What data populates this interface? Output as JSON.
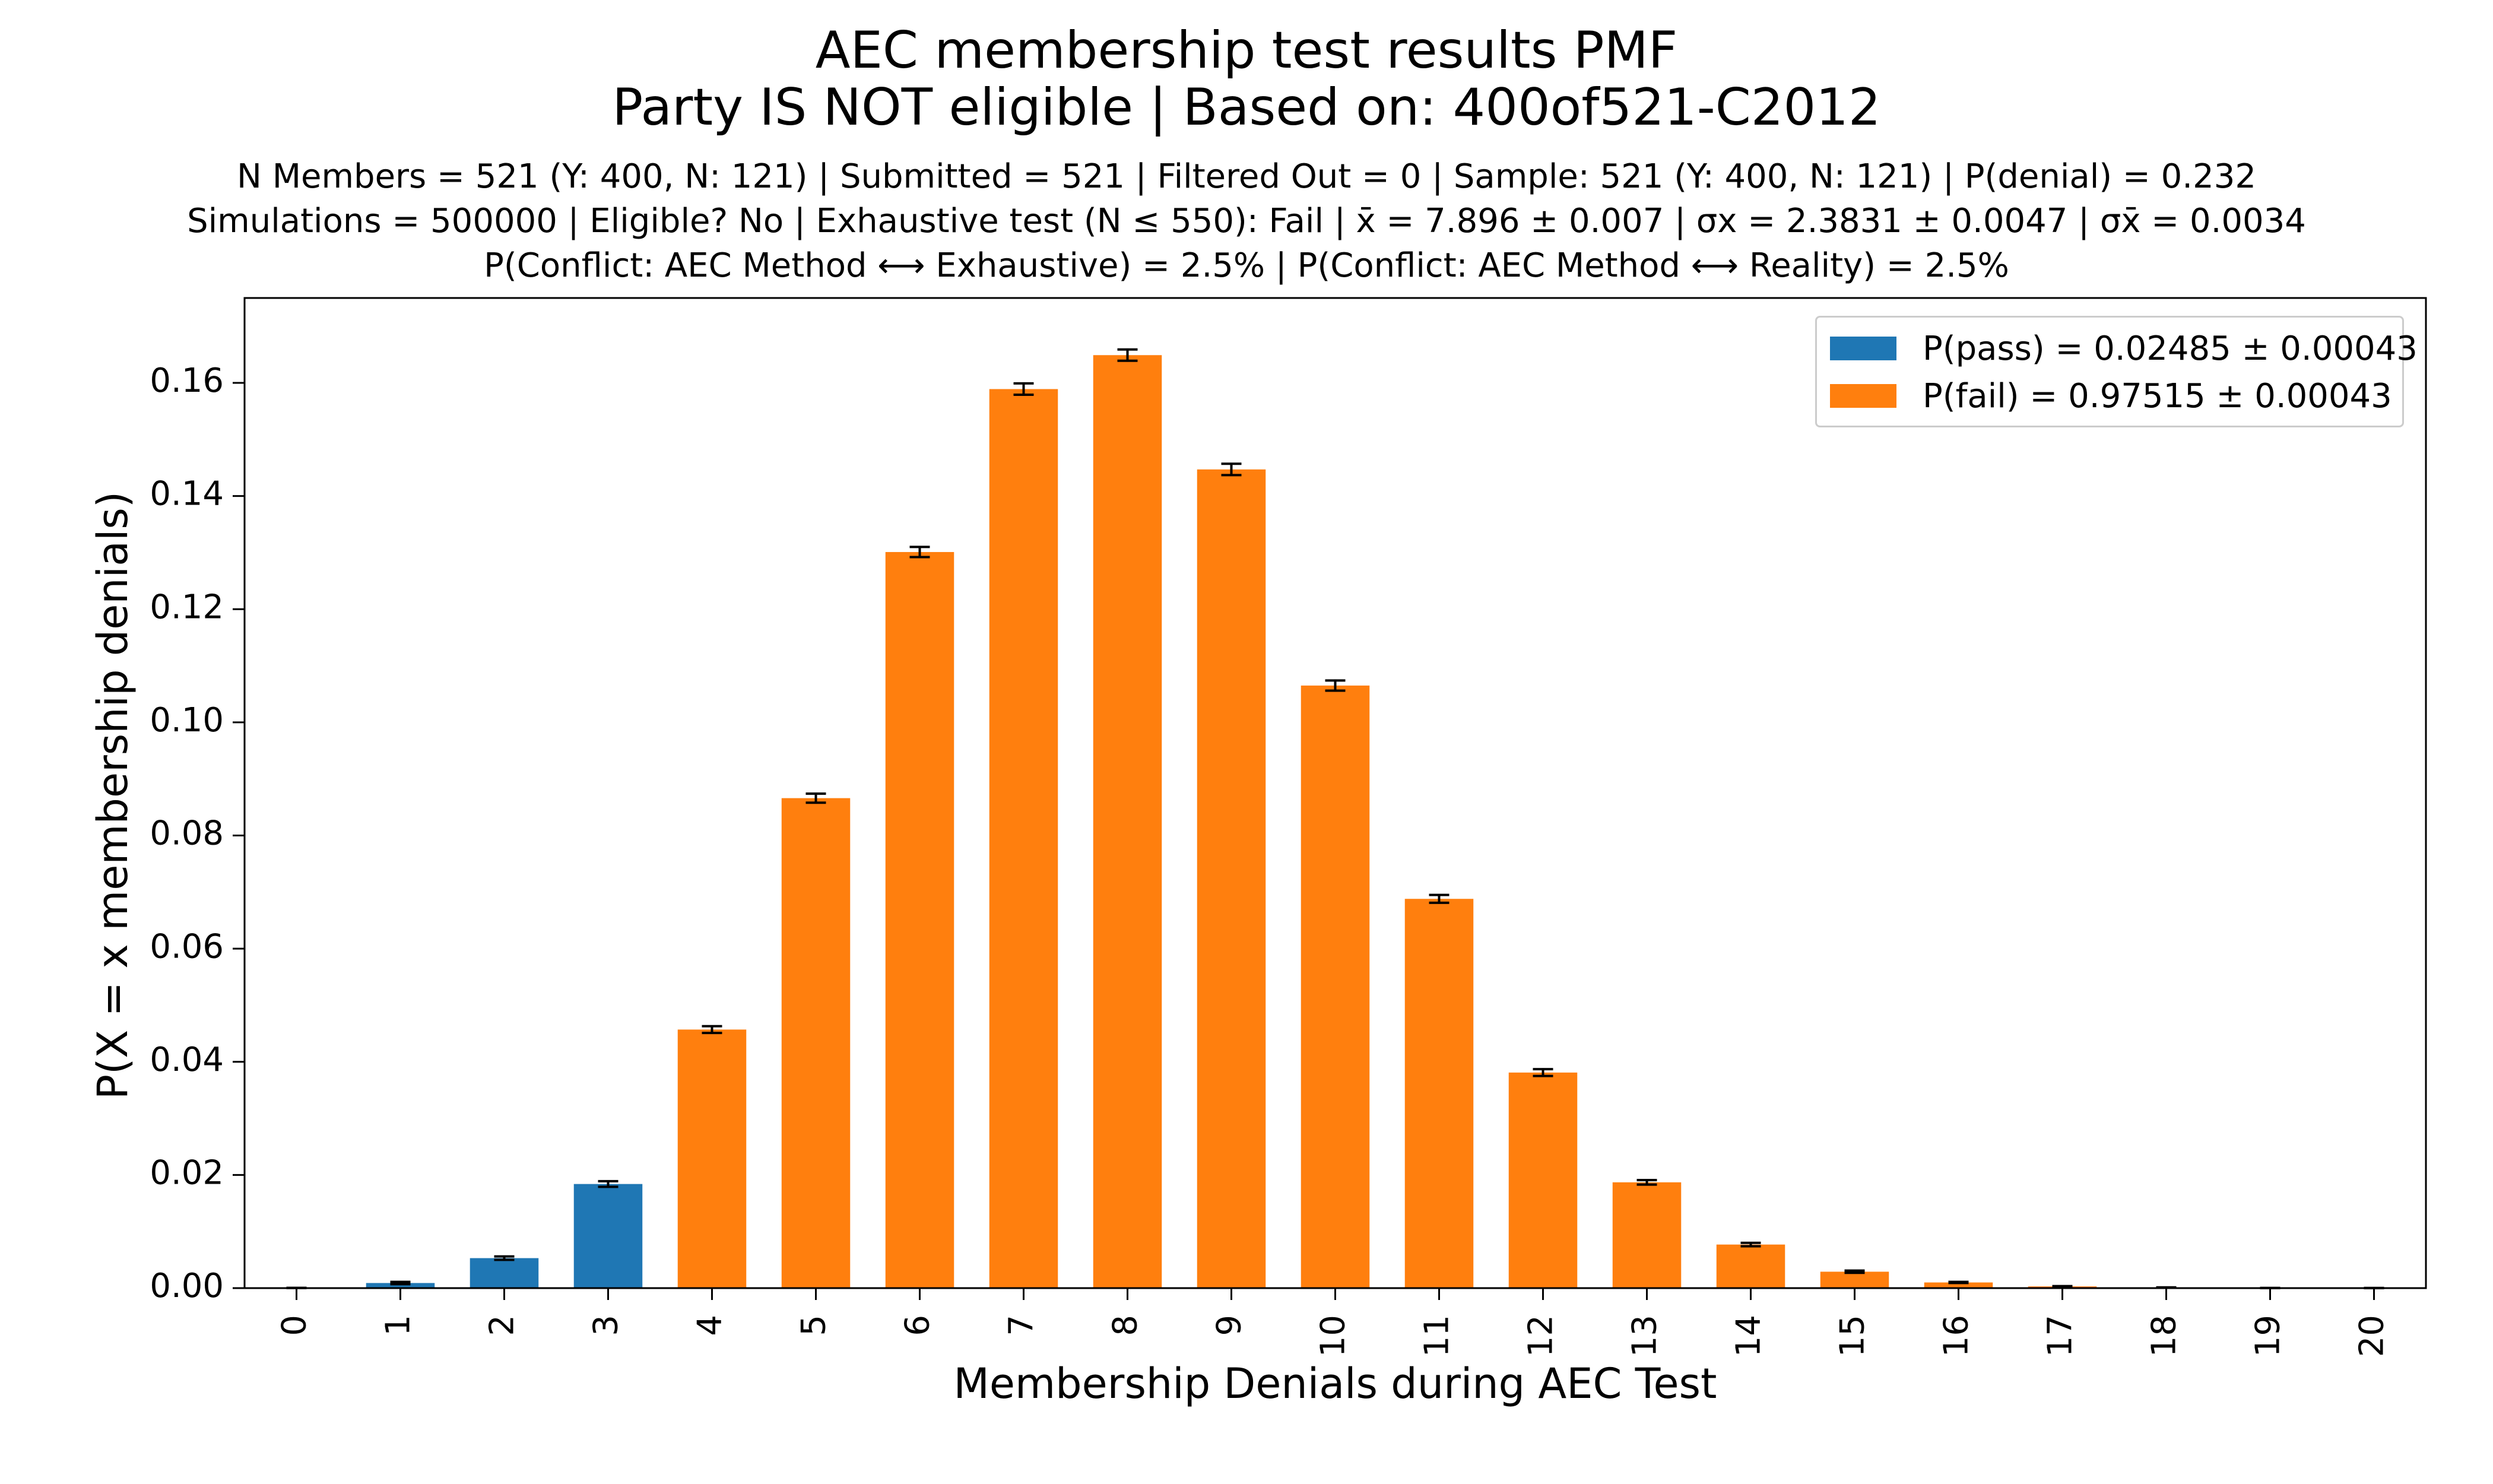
{
  "title": {
    "line1": "AEC membership test results PMF",
    "line2": "Party IS NOT eligible | Based on: 400of521-C2012"
  },
  "subtitle": {
    "line1": "N Members = 521 (Y: 400, N: 121) | Submitted = 521 | Filtered Out = 0 | Sample: 521 (Y: 400, N: 121) | P(denial) = 0.232",
    "line2": "Simulations = 500000 | Eligible? No | Exhaustive test (N ≤ 550): Fail | x̄ = 7.896 ± 0.007 | σx = 2.3831 ± 0.0047 | σx̄ = 0.0034",
    "line3": "P(Conflict: AEC Method ⟷ Exhaustive) = 2.5% | P(Conflict: AEC Method ⟷ Reality) = 2.5%"
  },
  "legend": {
    "pass": "P(pass) = 0.02485 ± 0.00043",
    "fail": "P(fail) = 0.97515 ± 0.00043"
  },
  "colors": {
    "pass": "#1f77b4",
    "fail": "#ff7f0e"
  },
  "chart_data": {
    "type": "bar",
    "xlabel": "Membership Denials during AEC Test",
    "ylabel": "P(X = x membership denials)",
    "ylim": [
      0,
      0.175
    ],
    "yticks": [
      "0.00",
      "0.02",
      "0.04",
      "0.06",
      "0.08",
      "0.10",
      "0.12",
      "0.14",
      "0.16"
    ],
    "categories": [
      "0",
      "1",
      "2",
      "3",
      "4",
      "5",
      "6",
      "7",
      "8",
      "9",
      "10",
      "11",
      "12",
      "13",
      "14",
      "15",
      "16",
      "17",
      "18",
      "19",
      "20"
    ],
    "values": [
      3e-05,
      0.0009,
      0.0053,
      0.0184,
      0.0457,
      0.0866,
      0.1301,
      0.1589,
      0.1649,
      0.1447,
      0.1065,
      0.0688,
      0.0381,
      0.0187,
      0.0077,
      0.0029,
      0.001,
      0.0003,
      0.0001,
      2e-05,
      1e-05
    ],
    "errors": [
      1e-05,
      0.0002,
      0.0003,
      0.0005,
      0.0006,
      0.0008,
      0.0009,
      0.001,
      0.001,
      0.001,
      0.0009,
      0.0007,
      0.0006,
      0.0004,
      0.0003,
      0.0002,
      0.0001,
      5e-05,
      3e-05,
      1e-05,
      1e-05
    ],
    "series_assignment": [
      "pass",
      "pass",
      "pass",
      "pass",
      "fail",
      "fail",
      "fail",
      "fail",
      "fail",
      "fail",
      "fail",
      "fail",
      "fail",
      "fail",
      "fail",
      "fail",
      "fail",
      "fail",
      "fail",
      "fail",
      "fail"
    ],
    "series": [
      {
        "name": "P(pass) = 0.02485 ± 0.00043",
        "categories": [
          "0",
          "1",
          "2",
          "3"
        ]
      },
      {
        "name": "P(fail) = 0.97515 ± 0.00043",
        "categories": [
          "4",
          "5",
          "6",
          "7",
          "8",
          "9",
          "10",
          "11",
          "12",
          "13",
          "14",
          "15",
          "16",
          "17",
          "18",
          "19",
          "20"
        ]
      }
    ],
    "grid": false,
    "legend_position": "top-right"
  }
}
